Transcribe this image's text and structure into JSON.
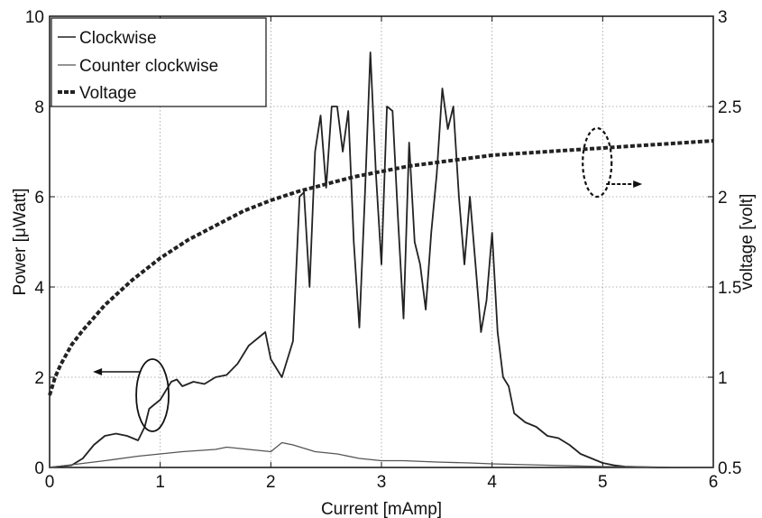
{
  "chart_data": {
    "type": "line",
    "title": "",
    "xlabel": "Current [mAmp]",
    "ylabel_left": "Power [μWatt]",
    "ylabel_right": "voltage [volt]",
    "xlim": [
      0,
      6
    ],
    "ylim_left": [
      0,
      10
    ],
    "ylim_right": [
      0.5,
      3
    ],
    "xticks": [
      "0",
      "1",
      "2",
      "3",
      "4",
      "5",
      "6"
    ],
    "yticks_left": [
      "0",
      "2",
      "4",
      "6",
      "8",
      "10"
    ],
    "yticks_right": [
      "0.5",
      "1",
      "1.5",
      "2",
      "2.5",
      "3"
    ],
    "grid": true,
    "legend_position": "top-left",
    "series": [
      {
        "name": "Clockwise",
        "axis": "left",
        "style": "solid",
        "color": "#222222",
        "x": [
          0,
          0.2,
          0.3,
          0.4,
          0.5,
          0.6,
          0.7,
          0.8,
          0.86,
          0.9,
          0.95,
          1.0,
          1.05,
          1.1,
          1.15,
          1.2,
          1.3,
          1.4,
          1.5,
          1.6,
          1.7,
          1.8,
          1.9,
          1.95,
          2.0,
          2.1,
          2.2,
          2.26,
          2.3,
          2.35,
          2.4,
          2.45,
          2.5,
          2.55,
          2.6,
          2.65,
          2.7,
          2.75,
          2.8,
          2.85,
          2.9,
          2.95,
          3.0,
          3.05,
          3.1,
          3.15,
          3.2,
          3.25,
          3.3,
          3.35,
          3.4,
          3.45,
          3.5,
          3.55,
          3.6,
          3.65,
          3.7,
          3.75,
          3.8,
          3.85,
          3.9,
          3.95,
          4.0,
          4.05,
          4.1,
          4.15,
          4.2,
          4.25,
          4.3,
          4.4,
          4.5,
          4.6,
          4.7,
          4.8,
          4.9,
          5.0,
          5.1,
          5.2,
          5.5,
          6.0
        ],
        "y": [
          0,
          0.05,
          0.2,
          0.5,
          0.7,
          0.75,
          0.7,
          0.6,
          0.9,
          1.3,
          1.4,
          1.5,
          1.7,
          1.9,
          1.95,
          1.8,
          1.9,
          1.85,
          2.0,
          2.05,
          2.3,
          2.7,
          2.9,
          3.0,
          2.4,
          2.0,
          2.8,
          6.0,
          6.1,
          4.0,
          7.0,
          7.8,
          6.2,
          8.0,
          8.0,
          7.0,
          7.9,
          5.0,
          3.1,
          6.0,
          9.2,
          6.5,
          4.5,
          8.0,
          7.9,
          5.5,
          3.3,
          7.2,
          5.0,
          4.5,
          3.5,
          5.2,
          6.5,
          8.4,
          7.5,
          8.0,
          6.0,
          4.5,
          6.0,
          4.5,
          3.0,
          3.7,
          5.2,
          3.0,
          2.0,
          1.8,
          1.2,
          1.1,
          1.0,
          0.9,
          0.7,
          0.65,
          0.5,
          0.3,
          0.2,
          0.1,
          0.05,
          0.02,
          0,
          0
        ]
      },
      {
        "name": "Counter clockwise",
        "axis": "left",
        "style": "solid",
        "color": "#555555",
        "x": [
          0,
          0.5,
          0.8,
          1.0,
          1.2,
          1.5,
          1.6,
          1.8,
          2.0,
          2.1,
          2.2,
          2.4,
          2.6,
          2.8,
          3.0,
          3.2,
          3.5,
          3.8,
          4.0,
          4.5,
          5.0,
          6.0
        ],
        "y": [
          0,
          0.15,
          0.25,
          0.3,
          0.35,
          0.4,
          0.45,
          0.4,
          0.35,
          0.55,
          0.5,
          0.35,
          0.3,
          0.2,
          0.15,
          0.15,
          0.12,
          0.1,
          0.08,
          0.05,
          0.02,
          0
        ]
      },
      {
        "name": "Voltage",
        "axis": "right",
        "style": "dashed",
        "color": "#222222",
        "x": [
          0,
          0.05,
          0.1,
          0.2,
          0.3,
          0.4,
          0.5,
          0.75,
          1.0,
          1.25,
          1.5,
          1.75,
          2.0,
          2.25,
          2.5,
          2.75,
          3.0,
          3.25,
          3.5,
          3.75,
          4.0,
          4.25,
          4.5,
          4.75,
          5.0,
          5.25,
          5.5,
          5.75,
          6.0
        ],
        "y": [
          0.9,
          1.0,
          1.07,
          1.18,
          1.26,
          1.33,
          1.4,
          1.54,
          1.66,
          1.76,
          1.84,
          1.92,
          1.98,
          2.03,
          2.07,
          2.11,
          2.14,
          2.17,
          2.19,
          2.21,
          2.23,
          2.24,
          2.25,
          2.26,
          2.27,
          2.28,
          2.29,
          2.3,
          2.31
        ]
      }
    ],
    "annotations": [
      {
        "type": "ellipse",
        "cx": 0.93,
        "cy_left": 1.6,
        "note": "circle on clockwise curve with arrow pointing left"
      },
      {
        "type": "ellipse",
        "cx": 4.95,
        "cy_right": 2.27,
        "note": "dashed circle on voltage curve with arrow pointing right"
      }
    ]
  }
}
